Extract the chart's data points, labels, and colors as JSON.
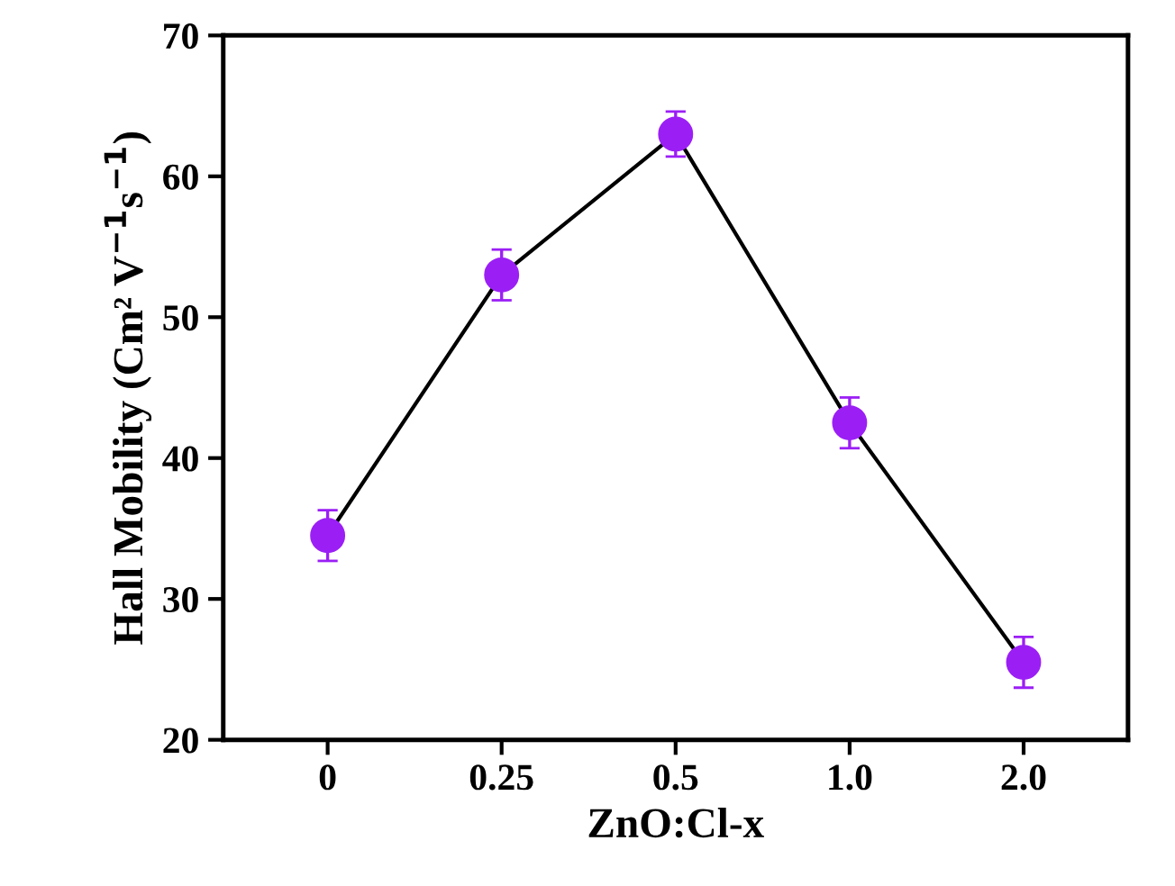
{
  "chart_data": {
    "type": "line",
    "xlabel": "ZnO:Cl-x",
    "ylabel": "Hall Mobility (Cm² V$^{−1}$s$^{−1}$)",
    "categories": [
      "0",
      "0.25",
      "0.5",
      "1.0",
      "2.0"
    ],
    "series": [
      {
        "color": "#9b1ff5",
        "values": [
          34.5,
          53,
          63,
          42.5,
          25.5
        ],
        "errors": [
          1.8,
          1.8,
          1.6,
          1.8,
          1.8
        ]
      }
    ],
    "ylim": [
      20,
      70
    ],
    "yticks": [
      20,
      30,
      40,
      50,
      60,
      70
    ],
    "marker": "circle",
    "line_style": "solid",
    "grid": false,
    "legend": false
  }
}
